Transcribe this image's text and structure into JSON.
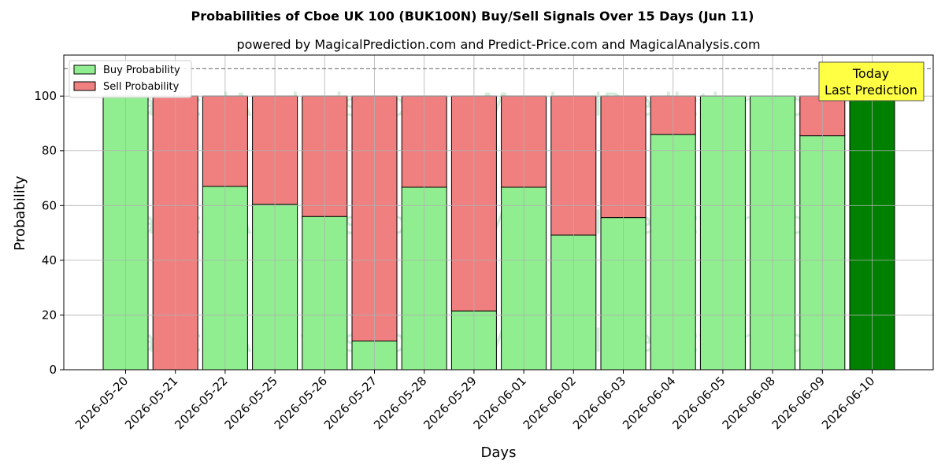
{
  "chart_data": {
    "type": "bar",
    "stacked": true,
    "title": "Probabilities of Cboe UK 100 (BUK100N) Buy/Sell Signals Over 15 Days (Jun 11)",
    "subtitle": "powered by MagicalPrediction.com and Predict-Price.com and MagicalAnalysis.com",
    "xlabel": "Days",
    "ylabel": "Probability",
    "ylim": [
      0,
      115
    ],
    "yticks": [
      0,
      20,
      40,
      60,
      80,
      100
    ],
    "reference_line": 110,
    "grid": true,
    "legend_placement": "top-left",
    "categories": [
      "2026-05-20",
      "2026-05-21",
      "2026-05-22",
      "2026-05-25",
      "2026-05-26",
      "2026-05-27",
      "2026-05-28",
      "2026-05-29",
      "2026-06-01",
      "2026-06-02",
      "2026-06-03",
      "2026-06-04",
      "2026-06-05",
      "2026-06-08",
      "2026-06-09",
      "2026-06-10"
    ],
    "series": [
      {
        "name": "Buy Probability",
        "color": "#90ee90",
        "values": [
          100,
          0,
          67,
          60.5,
          56,
          10.5,
          66.7,
          21.5,
          66.7,
          49.2,
          55.6,
          86,
          100,
          100,
          85.5,
          100
        ]
      },
      {
        "name": "Sell Probability",
        "color": "#f08080",
        "values": [
          0,
          100,
          33,
          39.5,
          44,
          89.5,
          33.3,
          78.5,
          33.3,
          50.8,
          44.4,
          14,
          0,
          0,
          14.5,
          0
        ]
      }
    ],
    "highlight": {
      "index": 15,
      "color": "#008000"
    },
    "annotation": {
      "line1": "Today",
      "line2": "Last Prediction",
      "background": "#ffff44"
    },
    "watermarks": [
      "MagicalAnalysis.com",
      "MagicalPrediction.com"
    ]
  }
}
